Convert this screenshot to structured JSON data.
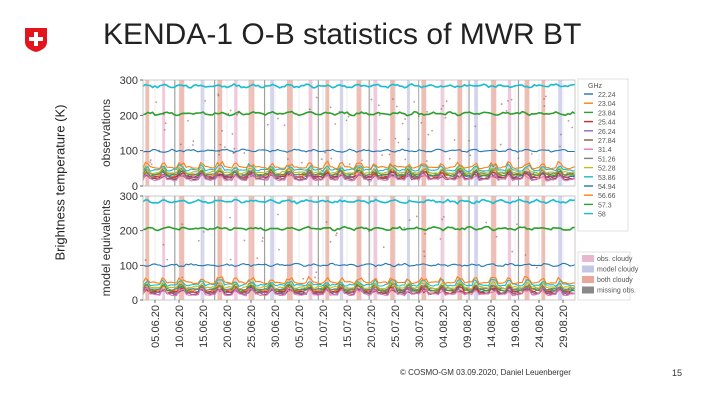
{
  "slide": {
    "title": "KENDA-1 O-B statistics of MWR BT",
    "y_axis_label": "Brightness temperature (K)",
    "footer": "© COSMO-GM 03.09.2020, Daniel Leuenberger",
    "page_number": "15",
    "logo_colors": {
      "shield": "#e3141b",
      "cross": "#ffffff"
    }
  },
  "chart_data": {
    "type": "line",
    "panels": [
      {
        "ylabel": "observations",
        "ylim": [
          0,
          300
        ],
        "yticks": [
          "0",
          "100",
          "200",
          "300"
        ]
      },
      {
        "ylabel": "model equivalents",
        "ylim": [
          0,
          300
        ],
        "yticks": [
          "0",
          "100",
          "200",
          "300"
        ]
      }
    ],
    "x_ticks": [
      "05.06.20",
      "10.06.20",
      "15.06.20",
      "20.06.20",
      "25.06.20",
      "30.06.20",
      "05.07.20",
      "10.07.20",
      "15.07.20",
      "20.07.20",
      "25.07.20",
      "30.07.20",
      "04.08.20",
      "09.08.20",
      "14.08.20",
      "19.08.20",
      "24.08.20",
      "29.08.20"
    ],
    "legend_title": "GHz",
    "series": [
      {
        "name": "22.24",
        "color": "#1f77b4",
        "level": 27
      },
      {
        "name": "23.04",
        "color": "#ff7f0e",
        "level": 29
      },
      {
        "name": "23.84",
        "color": "#2ca02c",
        "level": 31
      },
      {
        "name": "25.44",
        "color": "#d62728",
        "level": 24
      },
      {
        "name": "26.24",
        "color": "#9467bd",
        "level": 22
      },
      {
        "name": "27.84",
        "color": "#8c564b",
        "level": 20
      },
      {
        "name": "31.4",
        "color": "#e377c2",
        "level": 18
      },
      {
        "name": "51.26",
        "color": "#7f7f7f",
        "level": 34
      },
      {
        "name": "52.28",
        "color": "#bcbd22",
        "level": 38
      },
      {
        "name": "53.86",
        "color": "#17becf",
        "level": 45
      },
      {
        "name": "54.94",
        "color": "#1f77b4",
        "level": 100
      },
      {
        "name": "56.66",
        "color": "#ff7f0e",
        "level": 52
      },
      {
        "name": "57.3",
        "color": "#2ca02c",
        "level": 205
      },
      {
        "name": "58",
        "color": "#17becf",
        "level": 283
      }
    ],
    "shading_legend": [
      {
        "label": "obs. cloudy",
        "color": "#e9b8d0"
      },
      {
        "label": "model cloudy",
        "color": "#c5c5e6"
      },
      {
        "label": "both cloudy",
        "color": "#e8a79a"
      },
      {
        "label": "missing obs.",
        "color": "#8a8a8a"
      }
    ],
    "cloudy_bands": [
      {
        "start": 0.5,
        "end": 1.3,
        "kind": "both"
      },
      {
        "start": 4.0,
        "end": 4.6,
        "kind": "obs"
      },
      {
        "start": 7.5,
        "end": 8.6,
        "kind": "both"
      },
      {
        "start": 12.0,
        "end": 12.8,
        "kind": "model"
      },
      {
        "start": 15.5,
        "end": 16.5,
        "kind": "both"
      },
      {
        "start": 19.0,
        "end": 19.7,
        "kind": "obs"
      },
      {
        "start": 22.0,
        "end": 23.2,
        "kind": "both"
      },
      {
        "start": 26.5,
        "end": 27.3,
        "kind": "model"
      },
      {
        "start": 30.0,
        "end": 31.2,
        "kind": "both"
      },
      {
        "start": 34.5,
        "end": 35.3,
        "kind": "obs"
      },
      {
        "start": 38.0,
        "end": 38.8,
        "kind": "both"
      },
      {
        "start": 41.0,
        "end": 41.7,
        "kind": "model"
      },
      {
        "start": 44.5,
        "end": 45.5,
        "kind": "both"
      },
      {
        "start": 48.0,
        "end": 48.8,
        "kind": "obs"
      },
      {
        "start": 51.5,
        "end": 52.6,
        "kind": "both"
      },
      {
        "start": 55.0,
        "end": 55.6,
        "kind": "model"
      },
      {
        "start": 58.0,
        "end": 59.0,
        "kind": "both"
      },
      {
        "start": 62.0,
        "end": 62.8,
        "kind": "obs"
      },
      {
        "start": 65.5,
        "end": 66.5,
        "kind": "both"
      },
      {
        "start": 69.0,
        "end": 69.8,
        "kind": "model"
      },
      {
        "start": 72.5,
        "end": 73.6,
        "kind": "both"
      },
      {
        "start": 76.0,
        "end": 76.7,
        "kind": "obs"
      },
      {
        "start": 79.5,
        "end": 80.5,
        "kind": "both"
      },
      {
        "start": 83.0,
        "end": 83.8,
        "kind": "both"
      },
      {
        "start": 86.5,
        "end": 87.3,
        "kind": "model"
      }
    ],
    "missing_obs_days": [
      6.5,
      14.8,
      25.2,
      36.4,
      47.0,
      57.3,
      67.8,
      78.1
    ],
    "x_range_days": [
      0,
      90
    ]
  }
}
